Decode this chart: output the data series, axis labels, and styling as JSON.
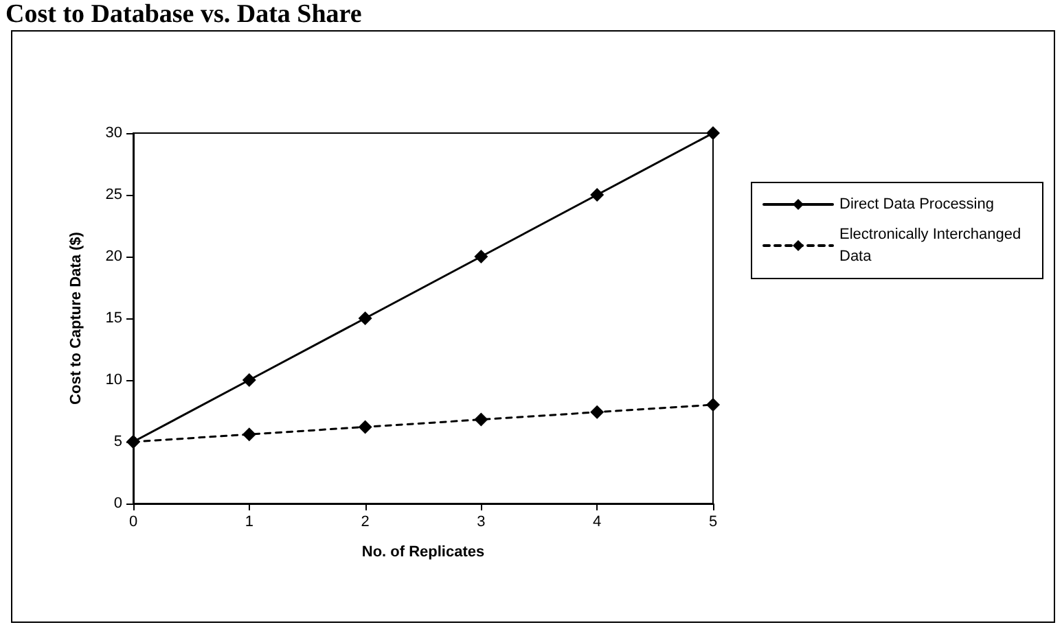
{
  "chart_data": {
    "type": "line",
    "title": "Cost to Database vs. Data Share",
    "xlabel": "No. of Replicates",
    "ylabel": "Cost to Capture Data ($)",
    "x": [
      0,
      1,
      2,
      3,
      4,
      5
    ],
    "series": [
      {
        "name": "Direct Data Processing",
        "color": "#000000",
        "line_style": "solid",
        "values": [
          5,
          10,
          15,
          20,
          25,
          30
        ]
      },
      {
        "name": "Electronically Interchanged Data",
        "color": "#000000",
        "line_style": "dashed",
        "values": [
          5,
          5.6,
          6.2,
          6.8,
          7.4,
          8.0
        ]
      }
    ],
    "xlim": [
      0,
      5
    ],
    "xticks": [
      0,
      1,
      2,
      3,
      4,
      5
    ],
    "ylim": [
      0,
      30
    ],
    "yticks": [
      0,
      5,
      10,
      15,
      20,
      25,
      30
    ],
    "grid": false,
    "legend": "right",
    "marker": "diamond"
  }
}
